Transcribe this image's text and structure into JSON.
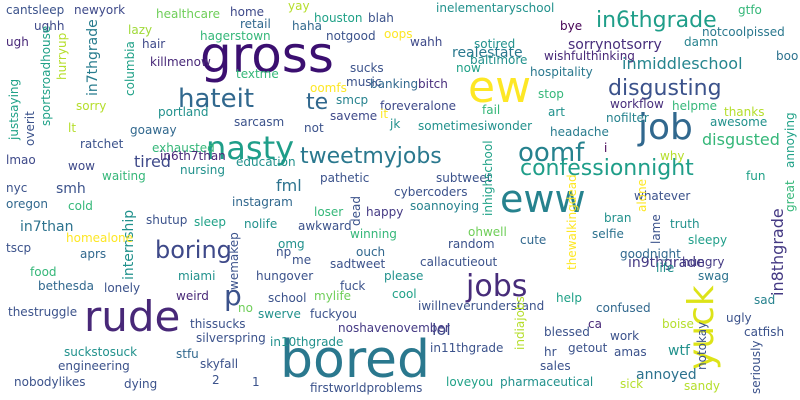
{
  "words": [
    {
      "text": "bored",
      "color": "#2a788e"
    },
    {
      "text": "gross",
      "color": "#3b0f70"
    },
    {
      "text": "rude",
      "color": "#482878"
    },
    {
      "text": "ew",
      "color": "#fde725"
    },
    {
      "text": "job",
      "color": "#31688e"
    },
    {
      "text": "eww",
      "color": "#26828e"
    },
    {
      "text": "nasty",
      "color": "#1f9e89"
    },
    {
      "text": "yuck",
      "color": "#dde318"
    },
    {
      "text": "jobs",
      "color": "#472c7a"
    },
    {
      "text": "confessionnight",
      "color": "#1f9e89"
    },
    {
      "text": "disgusting",
      "color": "#3b528b"
    },
    {
      "text": "hateit",
      "color": "#31688e"
    },
    {
      "text": "tweetmyjobs",
      "color": "#2a788e"
    },
    {
      "text": "boring",
      "color": "#3e4989"
    },
    {
      "text": "oomf",
      "color": "#26828e"
    },
    {
      "text": "in6thgrade",
      "color": "#1f9e89"
    },
    {
      "text": "p",
      "color": "#3b528b"
    },
    {
      "text": "te",
      "color": "#31688e"
    },
    {
      "text": "inmiddleschool",
      "color": "#25858e"
    },
    {
      "text": "disgusted",
      "color": "#35b779"
    },
    {
      "text": "fml",
      "color": "#2c728e"
    },
    {
      "text": "tired",
      "color": "#3e4989"
    },
    {
      "text": "internship",
      "color": "#21918c"
    },
    {
      "text": "in8thgrade",
      "color": "#443983"
    },
    {
      "text": "in9thgrade",
      "color": "#443983"
    },
    {
      "text": "smh",
      "color": "#3b528b"
    },
    {
      "text": "in7than",
      "color": "#2c728e"
    },
    {
      "text": "lol",
      "color": "#3e4989"
    },
    {
      "text": "wtf",
      "color": "#21918c"
    },
    {
      "text": "annoyed",
      "color": "#2c728e"
    },
    {
      "text": "sorrynotsorry",
      "color": "#472d7b"
    },
    {
      "text": "realestate",
      "color": "#2a788e"
    },
    {
      "text": "in7thgrade",
      "color": "#287c8e"
    },
    {
      "text": "cantsleep",
      "color": "#3b528b"
    },
    {
      "text": "newyork",
      "color": "#3e4989"
    },
    {
      "text": "healthcare",
      "color": "#6ece58"
    },
    {
      "text": "home",
      "color": "#3e4989"
    },
    {
      "text": "yay",
      "color": "#b5de2b"
    },
    {
      "text": "houston",
      "color": "#1fa187"
    },
    {
      "text": "blah",
      "color": "#3b528b"
    },
    {
      "text": "inelementaryschool",
      "color": "#21918c"
    },
    {
      "text": "gtfo",
      "color": "#35b779"
    },
    {
      "text": "notcoolpissed",
      "color": "#2a788e"
    },
    {
      "text": "ughh",
      "color": "#3e4989"
    },
    {
      "text": "lazy",
      "color": "#a0da39"
    },
    {
      "text": "retail",
      "color": "#31688e"
    },
    {
      "text": "haha",
      "color": "#31688e"
    },
    {
      "text": "oops",
      "color": "#fde725"
    },
    {
      "text": "bye",
      "color": "#440154"
    },
    {
      "text": "ugh",
      "color": "#482878"
    },
    {
      "text": "hair",
      "color": "#3e4989"
    },
    {
      "text": "hagerstown",
      "color": "#35b779"
    },
    {
      "text": "notgood",
      "color": "#3b528b"
    },
    {
      "text": "wahh",
      "color": "#3e4989"
    },
    {
      "text": "sotired",
      "color": "#21918c"
    },
    {
      "text": "damn",
      "color": "#26828e"
    },
    {
      "text": "wishfulthinking",
      "color": "#482878"
    },
    {
      "text": "boo",
      "color": "#2c728e"
    },
    {
      "text": "killmenow",
      "color": "#482878"
    },
    {
      "text": "textme",
      "color": "#35b779"
    },
    {
      "text": "sucks",
      "color": "#3b528b"
    },
    {
      "text": "banking",
      "color": "#31688e"
    },
    {
      "text": "baltimore",
      "color": "#21918c"
    },
    {
      "text": "now",
      "color": "#1fa187"
    },
    {
      "text": "hospitality",
      "color": "#2a788e"
    },
    {
      "text": "music",
      "color": "#3b528b"
    },
    {
      "text": "bitch",
      "color": "#472d7b"
    },
    {
      "text": "stop",
      "color": "#35b779"
    },
    {
      "text": "oomfs",
      "color": "#fde725"
    },
    {
      "text": "smcp",
      "color": "#26828e"
    },
    {
      "text": "foreveralone",
      "color": "#3e4989"
    },
    {
      "text": "workflow",
      "color": "#472d7b"
    },
    {
      "text": "helpme",
      "color": "#35b779"
    },
    {
      "text": "fail",
      "color": "#35b779"
    },
    {
      "text": "art",
      "color": "#21918c"
    },
    {
      "text": "nofilter",
      "color": "#26828e"
    },
    {
      "text": "thanks",
      "color": "#b5de2b"
    },
    {
      "text": "awesome",
      "color": "#21918c"
    },
    {
      "text": "portland",
      "color": "#21918c"
    },
    {
      "text": "saveme",
      "color": "#3e4989"
    },
    {
      "text": "it",
      "color": "#fde725"
    },
    {
      "text": "jk",
      "color": "#21918c"
    },
    {
      "text": "sometimesiwonder",
      "color": "#21918c"
    },
    {
      "text": "headache",
      "color": "#287c8e"
    },
    {
      "text": "goaway",
      "color": "#31688e"
    },
    {
      "text": "sarcasm",
      "color": "#3b528b"
    },
    {
      "text": "not",
      "color": "#3b528b"
    },
    {
      "text": "lt",
      "color": "#b5de2b"
    },
    {
      "text": "exhausted",
      "color": "#35b779"
    },
    {
      "text": "ratchet",
      "color": "#3b528b"
    },
    {
      "text": "education",
      "color": "#21918c"
    },
    {
      "text": "i",
      "color": "#440154"
    },
    {
      "text": "why",
      "color": "#b5de2b"
    },
    {
      "text": "annoying",
      "color": "#1fa187"
    },
    {
      "text": "lmao",
      "color": "#3e4989"
    },
    {
      "text": "wow",
      "color": "#3e4989"
    },
    {
      "text": "in6th7than",
      "color": "#482878"
    },
    {
      "text": "pathetic",
      "color": "#3b528b"
    },
    {
      "text": "subtweet",
      "color": "#3b528b"
    },
    {
      "text": "waiting",
      "color": "#35b779"
    },
    {
      "text": "nursing",
      "color": "#21918c"
    },
    {
      "text": "cybercoders",
      "color": "#3b528b"
    },
    {
      "text": "whatever",
      "color": "#3b528b"
    },
    {
      "text": "fun",
      "color": "#1fa187"
    },
    {
      "text": "nyc",
      "color": "#3b528b"
    },
    {
      "text": "oregon",
      "color": "#31688e"
    },
    {
      "text": "instagram",
      "color": "#31688e"
    },
    {
      "text": "happy",
      "color": "#443983"
    },
    {
      "text": "soannoying",
      "color": "#26828e"
    },
    {
      "text": "alone",
      "color": "#fde725"
    },
    {
      "text": "cold",
      "color": "#35b779"
    },
    {
      "text": "shutup",
      "color": "#3b528b"
    },
    {
      "text": "sleep",
      "color": "#1fa187"
    },
    {
      "text": "nolife",
      "color": "#21918c"
    },
    {
      "text": "loser",
      "color": "#35b779"
    },
    {
      "text": "bran",
      "color": "#21918c"
    },
    {
      "text": "truth",
      "color": "#21918c"
    },
    {
      "text": "great",
      "color": "#35b779"
    },
    {
      "text": "awkward",
      "color": "#3b528b"
    },
    {
      "text": "winning",
      "color": "#35b779"
    },
    {
      "text": "selfie",
      "color": "#2c728e"
    },
    {
      "text": "sleepy",
      "color": "#1f9e89"
    },
    {
      "text": "omg",
      "color": "#21918c"
    },
    {
      "text": "ohwell",
      "color": "#6ece58"
    },
    {
      "text": "cute",
      "color": "#31688e"
    },
    {
      "text": "homealone",
      "color": "#fde725"
    },
    {
      "text": "tscp",
      "color": "#3b528b"
    },
    {
      "text": "aprs",
      "color": "#31688e"
    },
    {
      "text": "np",
      "color": "#3b528b"
    },
    {
      "text": "ouch",
      "color": "#31688e"
    },
    {
      "text": "random",
      "color": "#3b528b"
    },
    {
      "text": "goodnight",
      "color": "#31688e"
    },
    {
      "text": "hungry",
      "color": "#443983"
    },
    {
      "text": "food",
      "color": "#35b779"
    },
    {
      "text": "miami",
      "color": "#21918c"
    },
    {
      "text": "me",
      "color": "#3b528b"
    },
    {
      "text": "sadtweet",
      "color": "#3b528b"
    },
    {
      "text": "callacutieout",
      "color": "#3b528b"
    },
    {
      "text": "life",
      "color": "#21918c"
    },
    {
      "text": "swag",
      "color": "#2c728e"
    },
    {
      "text": "bethesda",
      "color": "#31688e"
    },
    {
      "text": "lonely",
      "color": "#3b528b"
    },
    {
      "text": "weird",
      "color": "#482878"
    },
    {
      "text": "hungover",
      "color": "#3b528b"
    },
    {
      "text": "please",
      "color": "#21918c"
    },
    {
      "text": "fuck",
      "color": "#3b528b"
    },
    {
      "text": "cool",
      "color": "#1fa187"
    },
    {
      "text": "thestruggle",
      "color": "#3b528b"
    },
    {
      "text": "school",
      "color": "#3b528b"
    },
    {
      "text": "mylife",
      "color": "#6ece58"
    },
    {
      "text": "help",
      "color": "#1fa187"
    },
    {
      "text": "sad",
      "color": "#26828e"
    },
    {
      "text": "iwillneverunderstand",
      "color": "#3b528b"
    },
    {
      "text": "confused",
      "color": "#31688e"
    },
    {
      "text": "no",
      "color": "#6ece58"
    },
    {
      "text": "swerve",
      "color": "#21918c"
    },
    {
      "text": "ugly",
      "color": "#3b528b"
    },
    {
      "text": "fuckyou",
      "color": "#3b528b"
    },
    {
      "text": "thissucks",
      "color": "#3b528b"
    },
    {
      "text": "noshavenovember",
      "color": "#443983"
    },
    {
      "text": "boise",
      "color": "#b5de2b"
    },
    {
      "text": "silverspring",
      "color": "#3b528b"
    },
    {
      "text": "in10thgrade",
      "color": "#21918c"
    },
    {
      "text": "ca",
      "color": "#482878"
    },
    {
      "text": "work",
      "color": "#3b528b"
    },
    {
      "text": "catfish",
      "color": "#3b528b"
    },
    {
      "text": "blessed",
      "color": "#3b528b"
    },
    {
      "text": "in11thgrade",
      "color": "#3b528b"
    },
    {
      "text": "getout",
      "color": "#3b528b"
    },
    {
      "text": "amas",
      "color": "#3b528b"
    },
    {
      "text": "suckstosuck",
      "color": "#21918c"
    },
    {
      "text": "stfu",
      "color": "#31688e"
    },
    {
      "text": "skyfall",
      "color": "#3b528b"
    },
    {
      "text": "hr",
      "color": "#3b528b"
    },
    {
      "text": "engineering",
      "color": "#3b528b"
    },
    {
      "text": "sales",
      "color": "#3b528b"
    },
    {
      "text": "nobodylikes",
      "color": "#3b528b"
    },
    {
      "text": "dying",
      "color": "#3b528b"
    },
    {
      "text": "2",
      "color": "#3b528b"
    },
    {
      "text": "1",
      "color": "#3b528b"
    },
    {
      "text": "firstworldproblems",
      "color": "#3b528b"
    },
    {
      "text": "loveyou",
      "color": "#1fa187"
    },
    {
      "text": "pharmaceutical",
      "color": "#21918c"
    },
    {
      "text": "sick",
      "color": "#b5de2b"
    },
    {
      "text": "sandy",
      "color": "#b5de2b"
    },
    {
      "text": "seriously",
      "color": "#3b528b"
    },
    {
      "text": "justsaying",
      "color": "#1fa187"
    },
    {
      "text": "sportsroadhouse",
      "color": "#1fa187"
    },
    {
      "text": "hurryup",
      "color": "#b5de2b"
    },
    {
      "text": "columbia",
      "color": "#1fa187"
    },
    {
      "text": "sorry",
      "color": "#b5de2b"
    },
    {
      "text": "overit",
      "color": "#3b528b"
    },
    {
      "text": "dead",
      "color": "#3b528b"
    },
    {
      "text": "inhighschool",
      "color": "#1fa187"
    },
    {
      "text": "thewalkingdead",
      "color": "#fde725"
    },
    {
      "text": "wemakep",
      "color": "#3b528b"
    },
    {
      "text": "lame",
      "color": "#3b528b"
    },
    {
      "text": "indiajobs",
      "color": "#b5de2b"
    },
    {
      "text": "notokay",
      "color": "#3b528b"
    }
  ]
}
